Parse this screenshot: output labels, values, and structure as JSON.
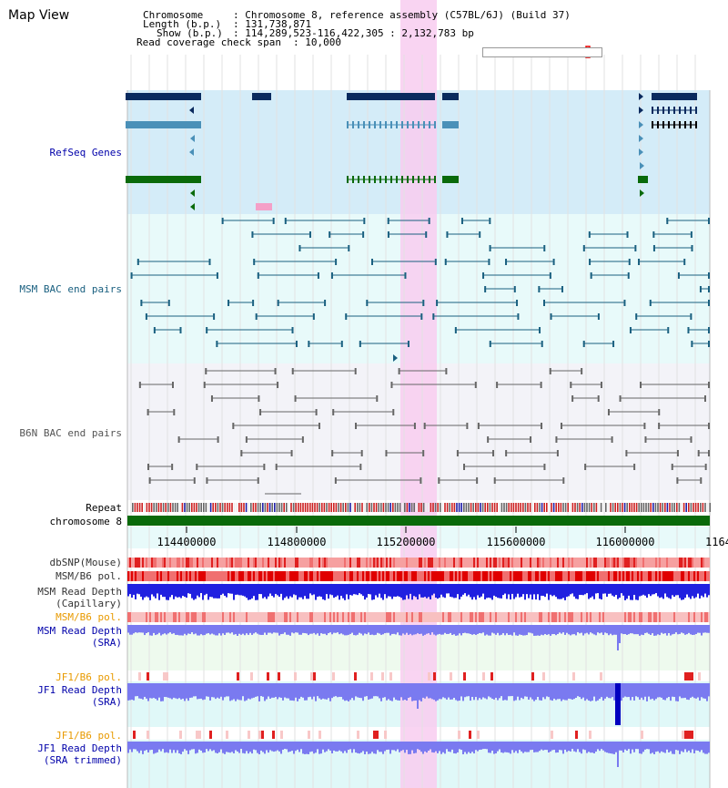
{
  "view_title": "Map View",
  "info": {
    "chromosome_label": "Chromosome",
    "chromosome_value": ": Chromosome 8, reference assembly (C57BL/6J) (Build 37)",
    "length_label": "Length (b.p.)",
    "length_value": ": 131,738,871",
    "show_label": "Show (b.p.)",
    "show_value": ": 114,289,523-116,422,305 : 2,132,783 bp",
    "coverage_label": "Read coverage check span",
    "coverage_value": ": 10,000"
  },
  "tracks": {
    "refseq": "RefSeq Genes",
    "msm_bac": "MSM BAC end pairs",
    "b6n_bac": "B6N BAC end pairs",
    "repeat": "Repeat",
    "chromosome": "chromosome 8",
    "dbsnp": "dbSNP(Mouse)",
    "msm_b6_pol_1": "MSM/B6 pol.",
    "msm_depth_cap_1": "MSM Read Depth",
    "msm_depth_cap_2": "(Capillary)",
    "msm_b6_pol_2": "MSM/B6 pol.",
    "msm_depth_sra_1": "MSM Read Depth",
    "msm_depth_sra_2": "(SRA)",
    "jf1_b6_pol_1": "JF1/B6 pol.",
    "jf1_depth_sra_1": "JF1 Read Depth",
    "jf1_depth_sra_2": "(SRA)",
    "jf1_b6_pol_2": "JF1/B6 pol.",
    "jf1_depth_trim_1": "JF1 Read Depth",
    "jf1_depth_trim_2": "(SRA trimmed)"
  },
  "axis": {
    "ticks": [
      "114400000",
      "114800000",
      "115200000",
      "115600000",
      "116000000",
      "1164"
    ]
  },
  "colors": {
    "refseq_band": "#d4ecf8",
    "msm_band": "#e8fafa",
    "b6n_band": "#f3f3f8",
    "highlight": "#f8ccf0",
    "gene_dark": "#0a2a5e",
    "gene_mid": "#4a90b8",
    "gene_green": "#0a6a0a",
    "msm_line": "#1a6080",
    "b6n_line": "#666666",
    "chromosome": "#0a6a0a",
    "depth_blue": "#2020e0",
    "depth_light": "#7a7af0",
    "pol_red": "#e02020",
    "label_blue": "#0000aa",
    "label_orange": "#e89a00",
    "label_teal": "#1a6080"
  }
}
